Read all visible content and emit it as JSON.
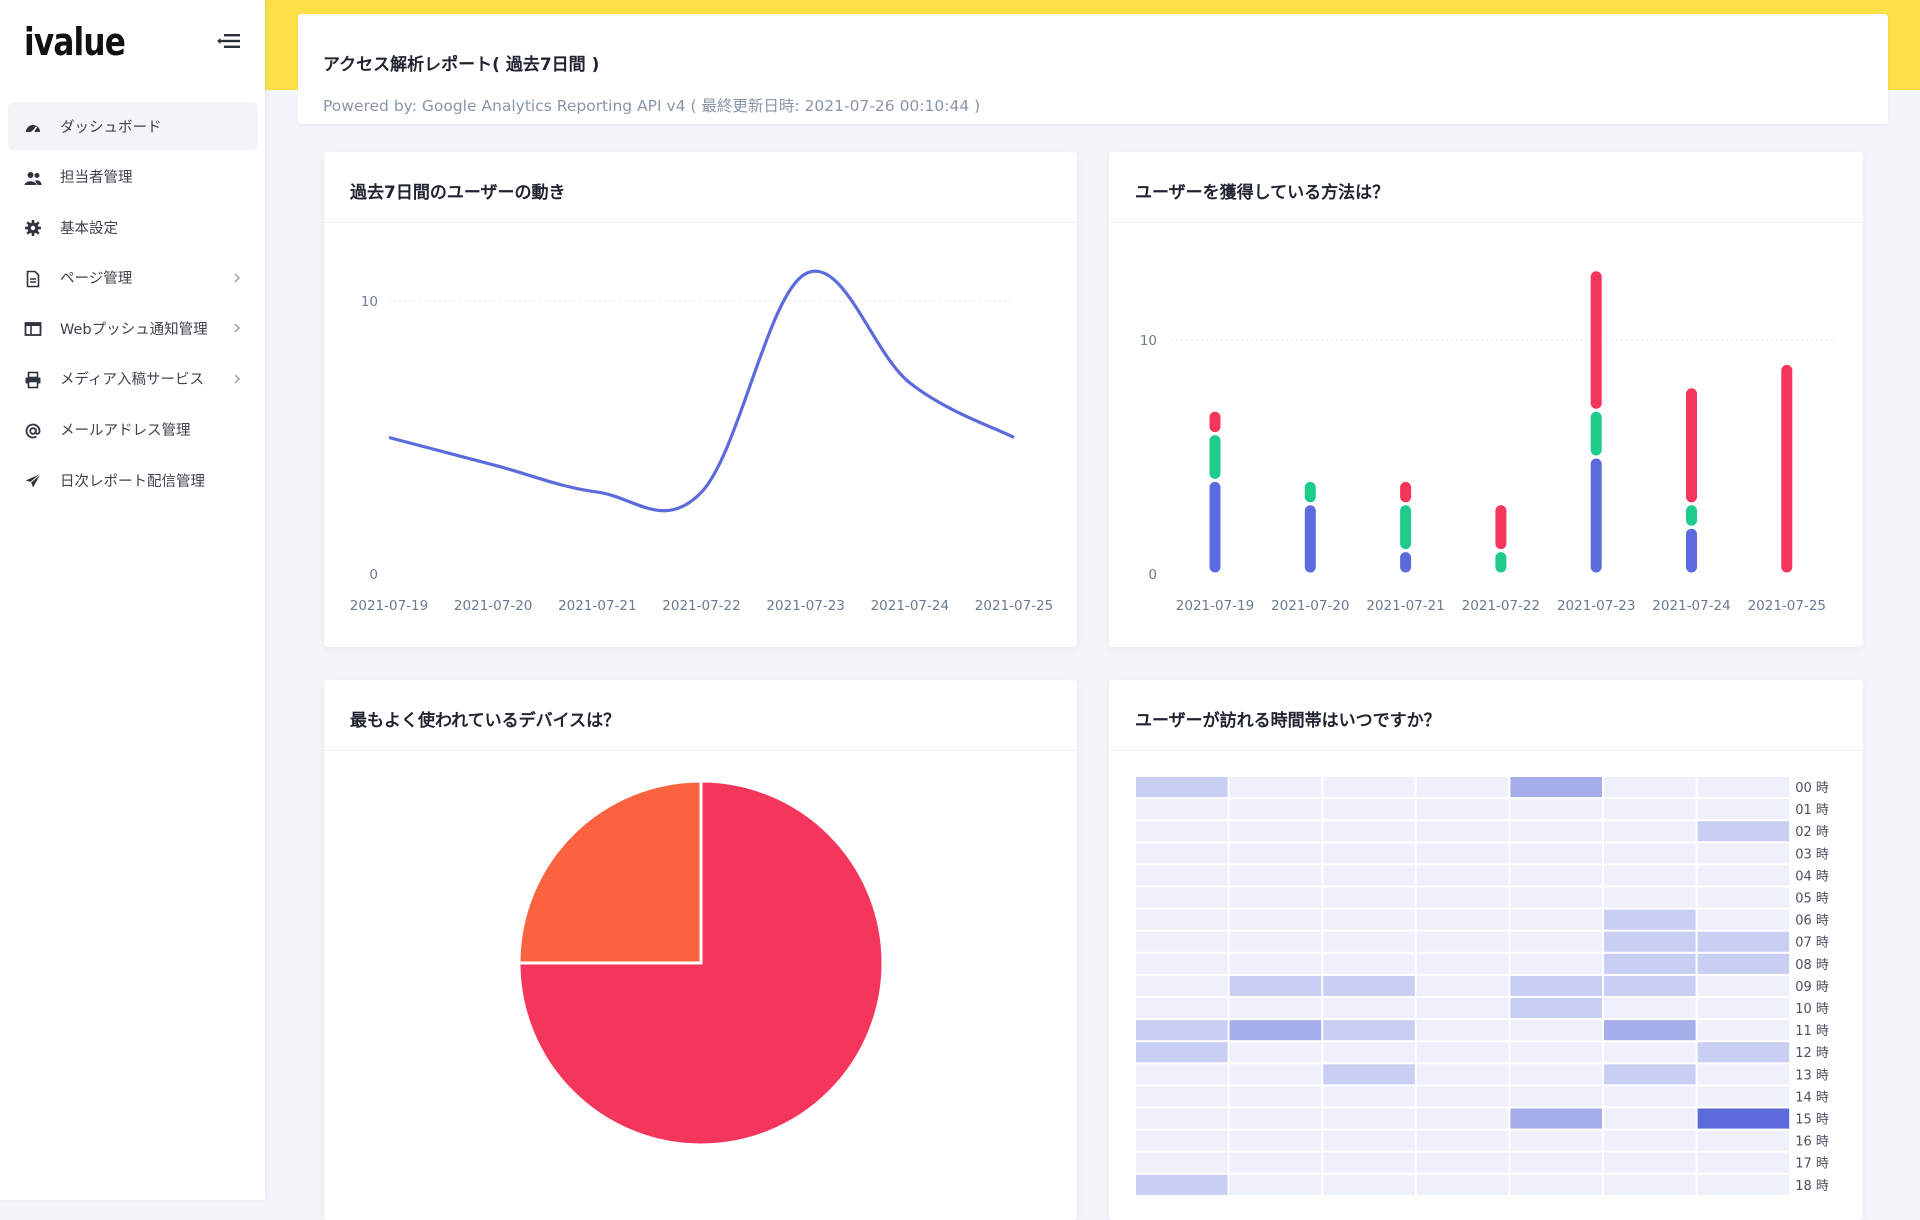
{
  "brand": {
    "logo_text": "ivalue"
  },
  "sidebar": {
    "items": [
      {
        "label": "ダッシュボード",
        "icon": "speedometer-icon",
        "active": true,
        "has_children": false
      },
      {
        "label": "担当者管理",
        "icon": "users-icon",
        "active": false,
        "has_children": false
      },
      {
        "label": "基本設定",
        "icon": "gear-icon",
        "active": false,
        "has_children": false
      },
      {
        "label": "ページ管理",
        "icon": "document-icon",
        "active": false,
        "has_children": true
      },
      {
        "label": "Webプッシュ通知管理",
        "icon": "window-icon",
        "active": false,
        "has_children": true
      },
      {
        "label": "メディア入稿サービス",
        "icon": "printer-icon",
        "active": false,
        "has_children": true
      },
      {
        "label": "メールアドレス管理",
        "icon": "at-sign-icon",
        "active": false,
        "has_children": false
      },
      {
        "label": "日次レポート配信管理",
        "icon": "paper-plane-icon",
        "active": false,
        "has_children": false
      }
    ]
  },
  "header": {
    "title": "アクセス解析レポート( 過去7日間 )",
    "subtitle": "Powered by: Google Analytics Reporting API v4 ( 最終更新日時: 2021-07-26 00:10:44 )"
  },
  "colors": {
    "topbar": "#fde047",
    "line": "#5b6bdb",
    "bar_blue": "#5b6bdb",
    "bar_green": "#1ecb8b",
    "bar_red": "#f5365c",
    "pie_red": "#f5365c",
    "pie_orange": "#fb6340",
    "heat_base": "#eef0fb",
    "heat_max": "#5b6bdb"
  },
  "cards": {
    "line_title": "過去7日間のユーザーの動き",
    "bar_title": "ユーザーを獲得している方法は？",
    "pie_title": "最もよく使われているデバイスは？",
    "heatmap_title": "ユーザーが訪れる時間帯はいつですか？"
  },
  "chart_data": [
    {
      "type": "line",
      "title": "過去7日間のユーザーの動き",
      "categories": [
        "2021-07-19",
        "2021-07-20",
        "2021-07-21",
        "2021-07-22",
        "2021-07-23",
        "2021-07-24",
        "2021-07-25"
      ],
      "series": [
        {
          "values": [
            5,
            4,
            3,
            3,
            11,
            7,
            5
          ]
        }
      ],
      "yticks": [
        0,
        10
      ],
      "ylim": [
        0,
        10.5
      ]
    },
    {
      "type": "bar",
      "title": "ユーザーを獲得している方法は？",
      "stacked": true,
      "categories": [
        "2021-07-19",
        "2021-07-20",
        "2021-07-21",
        "2021-07-22",
        "2021-07-23",
        "2021-07-24",
        "2021-07-25"
      ],
      "series": [
        {
          "values": [
            4,
            3,
            1,
            0,
            5,
            2,
            0
          ]
        },
        {
          "values": [
            2,
            1,
            2,
            1,
            2,
            1,
            0
          ]
        },
        {
          "values": [
            1,
            0,
            1,
            2,
            6,
            5,
            9
          ]
        }
      ],
      "yticks": [
        0,
        10
      ],
      "ylim": [
        0,
        13.5
      ]
    },
    {
      "type": "pie",
      "title": "最もよく使われているデバイスは？",
      "series": [
        {
          "values": [
            75,
            25
          ]
        }
      ]
    },
    {
      "type": "heatmap",
      "title": "ユーザーが訪れる時間帯はいつですか？",
      "rows": [
        "00 時",
        "01 時",
        "02 時",
        "03 時",
        "04 時",
        "05 時",
        "06 時",
        "07 時",
        "08 時",
        "09 時",
        "10 時",
        "11 時",
        "12 時",
        "13 時",
        "14 時",
        "15 時",
        "16 時",
        "17 時",
        "18 時"
      ],
      "columns": 7,
      "values": [
        [
          2,
          0,
          0,
          0,
          4,
          0,
          0
        ],
        [
          0,
          0,
          0,
          0,
          0,
          0,
          0
        ],
        [
          0,
          0,
          0,
          0,
          0,
          0,
          2
        ],
        [
          0,
          0,
          0,
          0,
          0,
          0,
          0
        ],
        [
          0,
          0,
          0,
          0,
          0,
          0,
          0
        ],
        [
          0,
          0,
          0,
          0,
          0,
          0,
          0
        ],
        [
          0,
          0,
          0,
          0,
          0,
          2,
          0
        ],
        [
          0,
          0,
          0,
          0,
          0,
          2,
          2
        ],
        [
          0,
          0,
          0,
          0,
          0,
          2,
          2
        ],
        [
          0,
          2,
          2,
          0,
          2,
          2,
          0
        ],
        [
          0,
          0,
          0,
          0,
          2,
          0,
          0
        ],
        [
          2,
          4,
          2,
          0,
          0,
          4,
          0
        ],
        [
          2,
          0,
          0,
          0,
          0,
          0,
          2
        ],
        [
          0,
          0,
          2,
          0,
          0,
          2,
          0
        ],
        [
          0,
          0,
          0,
          0,
          0,
          0,
          0
        ],
        [
          0,
          0,
          0,
          0,
          4,
          0,
          8
        ],
        [
          0,
          0,
          0,
          0,
          0,
          0,
          0
        ],
        [
          0,
          0,
          0,
          0,
          0,
          0,
          0
        ],
        [
          2,
          0,
          0,
          0,
          0,
          0,
          0
        ]
      ]
    }
  ]
}
